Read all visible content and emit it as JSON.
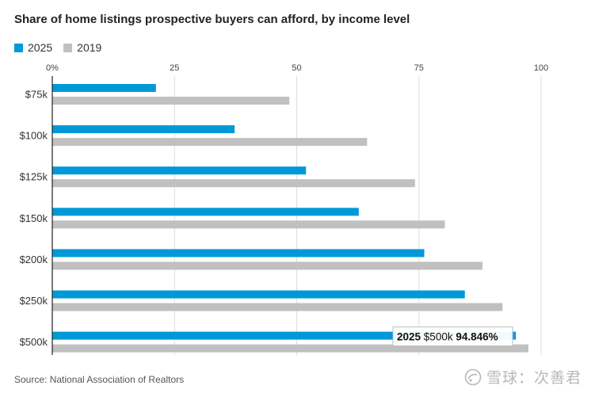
{
  "title": "Share of home listings prospective buyers can afford, by income level",
  "source": "Source: National Association of Realtors",
  "watermark": "雪球：次善君",
  "colors": {
    "s2025": "#0099d8",
    "s2019": "#c0c0c0",
    "grid": "#dddddd",
    "axis": "#222222"
  },
  "chart_data": {
    "type": "bar",
    "orientation": "horizontal",
    "title": "Share of home listings prospective buyers can afford, by income level",
    "categories": [
      "$75k",
      "$100k",
      "$125k",
      "$150k",
      "$200k",
      "$250k",
      "$500k"
    ],
    "series": [
      {
        "name": "2025",
        "color": "#0099d8",
        "values": [
          21.2,
          37.3,
          51.9,
          62.7,
          76.1,
          84.4,
          94.846
        ]
      },
      {
        "name": "2019",
        "color": "#c0c0c0",
        "values": [
          48.5,
          64.4,
          74.2,
          80.3,
          88.0,
          92.1,
          97.4
        ]
      }
    ],
    "xlim": [
      0,
      100
    ],
    "xticks": [
      0,
      25,
      50,
      75,
      100
    ],
    "xtick_labels": [
      "0%",
      "25",
      "50",
      "75",
      "100"
    ],
    "legend_position": "top-left",
    "grid": true,
    "tooltip": {
      "series": "2025",
      "category": "$500k",
      "value_label": "94.846%"
    }
  }
}
